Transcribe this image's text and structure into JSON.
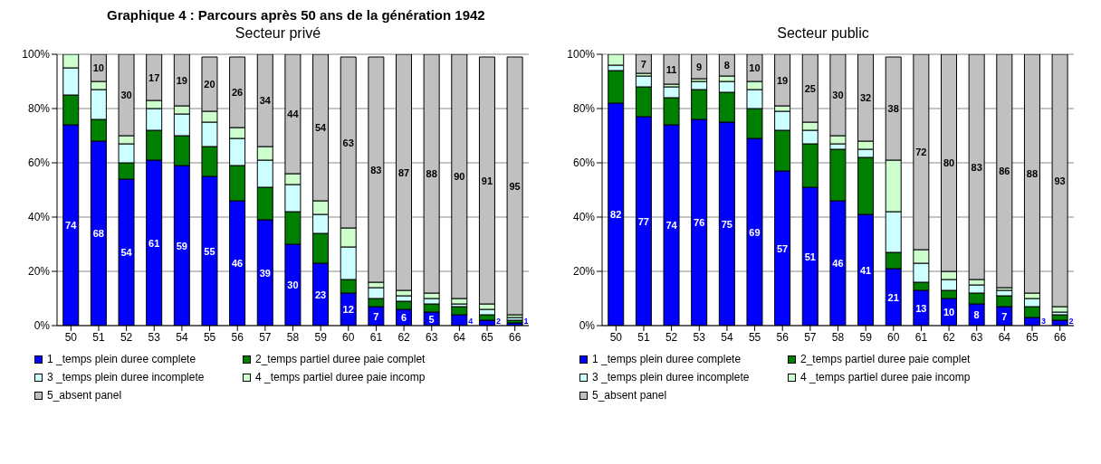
{
  "chart_data": [
    {
      "type": "bar",
      "title": "Graphique 4 : Parcours après 50 ans de la génération 1942",
      "subtitle": "Secteur privé",
      "categories": [
        "50",
        "51",
        "52",
        "53",
        "54",
        "55",
        "56",
        "57",
        "58",
        "59",
        "60",
        "61",
        "62",
        "63",
        "64",
        "65",
        "66"
      ],
      "stacked": true,
      "ylim": [
        0,
        100
      ],
      "yticks": [
        {
          "value": 0,
          "label": "0%"
        },
        {
          "value": 20,
          "label": "20%"
        },
        {
          "value": 40,
          "label": "40%"
        },
        {
          "value": 60,
          "label": "60%"
        },
        {
          "value": 80,
          "label": "80%"
        },
        {
          "value": 100,
          "label": "100%"
        }
      ],
      "grid": "y",
      "legend": "bottom",
      "series": [
        {
          "name": "1 _temps plein duree complete",
          "color": "#0000ff",
          "values": [
            74,
            68,
            54,
            61,
            59,
            55,
            46,
            39,
            30,
            23,
            12,
            7,
            6,
            5,
            4,
            2,
            1
          ],
          "value_labels": [
            "74",
            "68",
            "54",
            "61",
            "59",
            "55",
            "46",
            "39",
            "30",
            "23",
            "12",
            "7",
            "6",
            "5",
            "4",
            "2",
            "1"
          ]
        },
        {
          "name": "2_temps partiel duree paie complet",
          "color": "#008000",
          "values": [
            11,
            8,
            6,
            11,
            11,
            11,
            13,
            12,
            12,
            11,
            5,
            3,
            3,
            3,
            3,
            2,
            1
          ]
        },
        {
          "name": "3 _temps plein duree incomplete",
          "color": "#ccffff",
          "values": [
            10,
            11,
            7,
            8,
            8,
            9,
            10,
            10,
            10,
            7,
            12,
            4,
            2,
            2,
            1,
            2,
            1
          ]
        },
        {
          "name": "4 _temps partiel duree paie incomp",
          "color": "#ccffcc",
          "values": [
            5,
            3,
            3,
            3,
            3,
            4,
            4,
            5,
            4,
            5,
            7,
            2,
            2,
            2,
            2,
            2,
            1
          ]
        },
        {
          "name": "5_absent panel",
          "color": "#c0c0c0",
          "values": [
            0,
            10,
            30,
            17,
            19,
            20,
            26,
            34,
            44,
            54,
            63,
            83,
            87,
            88,
            90,
            91,
            95
          ],
          "value_labels": [
            null,
            "10",
            "30",
            "17",
            "19",
            "20",
            "26",
            "34",
            "44",
            "54",
            "63",
            "83",
            "87",
            "88",
            "90",
            "91",
            "95"
          ]
        }
      ]
    },
    {
      "type": "bar",
      "subtitle": "Secteur public",
      "categories": [
        "50",
        "51",
        "52",
        "53",
        "54",
        "55",
        "56",
        "57",
        "58",
        "59",
        "60",
        "61",
        "62",
        "63",
        "64",
        "65",
        "66"
      ],
      "stacked": true,
      "ylim": [
        0,
        100
      ],
      "yticks": [
        {
          "value": 0,
          "label": "0%"
        },
        {
          "value": 20,
          "label": "20%"
        },
        {
          "value": 40,
          "label": "40%"
        },
        {
          "value": 60,
          "label": "60%"
        },
        {
          "value": 80,
          "label": "80%"
        },
        {
          "value": 100,
          "label": "100%"
        }
      ],
      "grid": "y",
      "legend": "bottom",
      "series": [
        {
          "name": "1 _temps plein duree complete",
          "color": "#0000ff",
          "values": [
            82,
            77,
            74,
            76,
            75,
            69,
            57,
            51,
            46,
            41,
            21,
            13,
            10,
            8,
            7,
            3,
            2
          ],
          "value_labels": [
            "82",
            "77",
            "74",
            "76",
            "75",
            "69",
            "57",
            "51",
            "46",
            "41",
            "21",
            "13",
            "10",
            "8",
            "7",
            "3",
            "2"
          ]
        },
        {
          "name": "2_temps partiel duree paie complet",
          "color": "#008000",
          "values": [
            12,
            11,
            10,
            11,
            11,
            11,
            15,
            16,
            19,
            21,
            6,
            3,
            3,
            4,
            4,
            4,
            2
          ]
        },
        {
          "name": "3 _temps plein duree incomplete",
          "color": "#ccffff",
          "values": [
            2,
            4,
            4,
            3,
            4,
            7,
            7,
            5,
            2,
            3,
            15,
            7,
            4,
            3,
            2,
            3,
            1
          ]
        },
        {
          "name": "4 _temps partiel duree paie incomp",
          "color": "#ccffcc",
          "values": [
            4,
            1,
            1,
            1,
            2,
            3,
            2,
            3,
            3,
            3,
            19,
            5,
            3,
            2,
            1,
            2,
            2
          ]
        },
        {
          "name": "5_absent panel",
          "color": "#c0c0c0",
          "values": [
            0,
            7,
            11,
            9,
            8,
            10,
            19,
            25,
            30,
            32,
            38,
            72,
            80,
            83,
            86,
            88,
            93
          ],
          "value_labels": [
            null,
            "7",
            "11",
            "9",
            "8",
            "10",
            "19",
            "25",
            "30",
            "32",
            "38",
            "72",
            "80",
            "83",
            "86",
            "88",
            "93"
          ]
        }
      ]
    }
  ]
}
